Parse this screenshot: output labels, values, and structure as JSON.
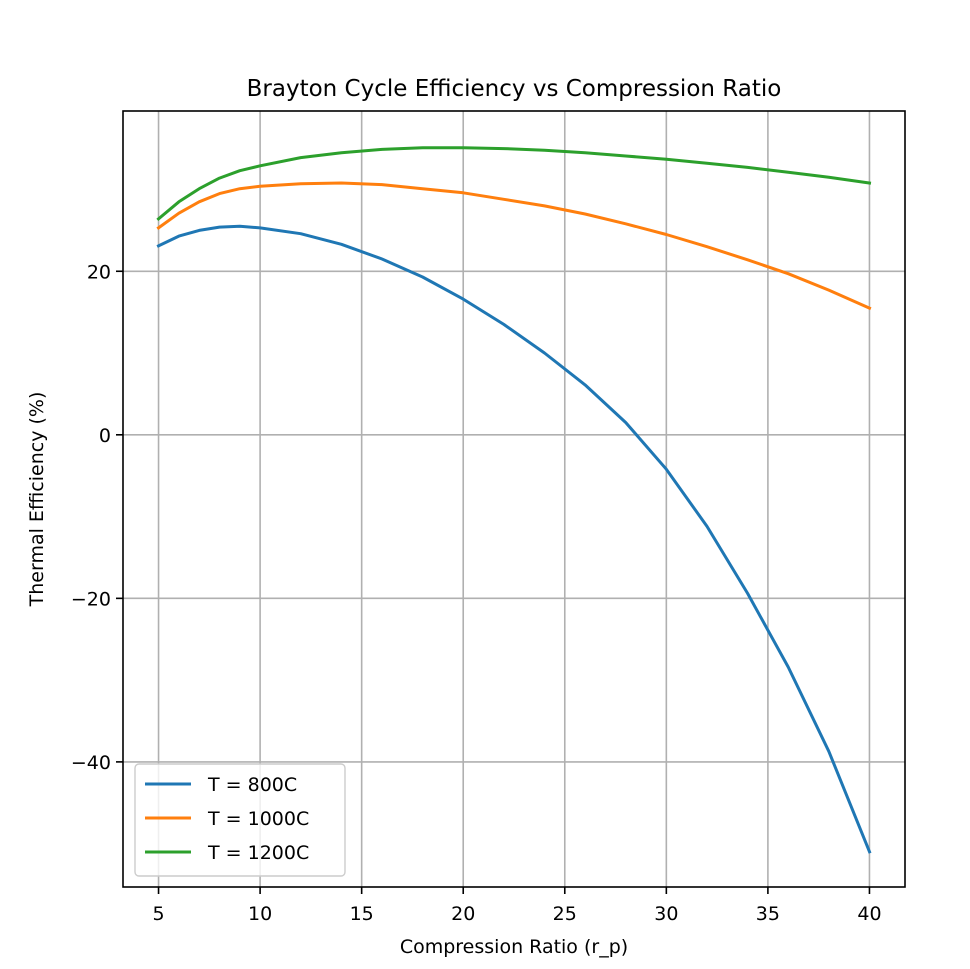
{
  "chart_data": {
    "type": "line",
    "title": "Brayton Cycle Efficiency vs Compression Ratio",
    "xlabel": "Compression Ratio (r_p)",
    "ylabel": "Thermal Efficiency (%)",
    "xlim": [
      3.25,
      41.75
    ],
    "ylim": [
      -55.3,
      39.6
    ],
    "xticks": [
      5,
      10,
      15,
      20,
      25,
      30,
      35,
      40
    ],
    "xtick_labels": [
      "5",
      "10",
      "15",
      "20",
      "25",
      "30",
      "35",
      "40"
    ],
    "yticks": [
      20,
      0,
      -20,
      -40
    ],
    "ytick_labels": [
      "20",
      "0",
      "−20",
      "−40"
    ],
    "grid": true,
    "legend_position": "lower-left",
    "x": [
      5,
      6,
      7,
      8,
      9,
      10,
      12,
      14,
      16,
      18,
      20,
      22,
      24,
      26,
      28,
      30,
      32,
      34,
      36,
      38,
      40
    ],
    "series": [
      {
        "name": "T = 800C",
        "color": "#1f77b4",
        "values": [
          23.1,
          24.3,
          25.0,
          25.4,
          25.5,
          25.3,
          24.6,
          23.3,
          21.5,
          19.3,
          16.6,
          13.5,
          10.0,
          6.1,
          1.5,
          -4.2,
          -11.2,
          -19.4,
          -28.4,
          -38.7,
          -51.0
        ]
      },
      {
        "name": "T = 1000C",
        "color": "#ff7f0e",
        "values": [
          25.3,
          27.1,
          28.5,
          29.5,
          30.1,
          30.4,
          30.7,
          30.8,
          30.6,
          30.1,
          29.6,
          28.8,
          28.0,
          27.0,
          25.8,
          24.5,
          23.0,
          21.4,
          19.7,
          17.7,
          15.5
        ]
      },
      {
        "name": "T = 1200C",
        "color": "#2ca02c",
        "values": [
          26.4,
          28.5,
          30.1,
          31.4,
          32.3,
          32.9,
          33.9,
          34.5,
          34.9,
          35.1,
          35.1,
          35.0,
          34.8,
          34.5,
          34.1,
          33.7,
          33.2,
          32.7,
          32.1,
          31.5,
          30.8
        ]
      }
    ]
  }
}
